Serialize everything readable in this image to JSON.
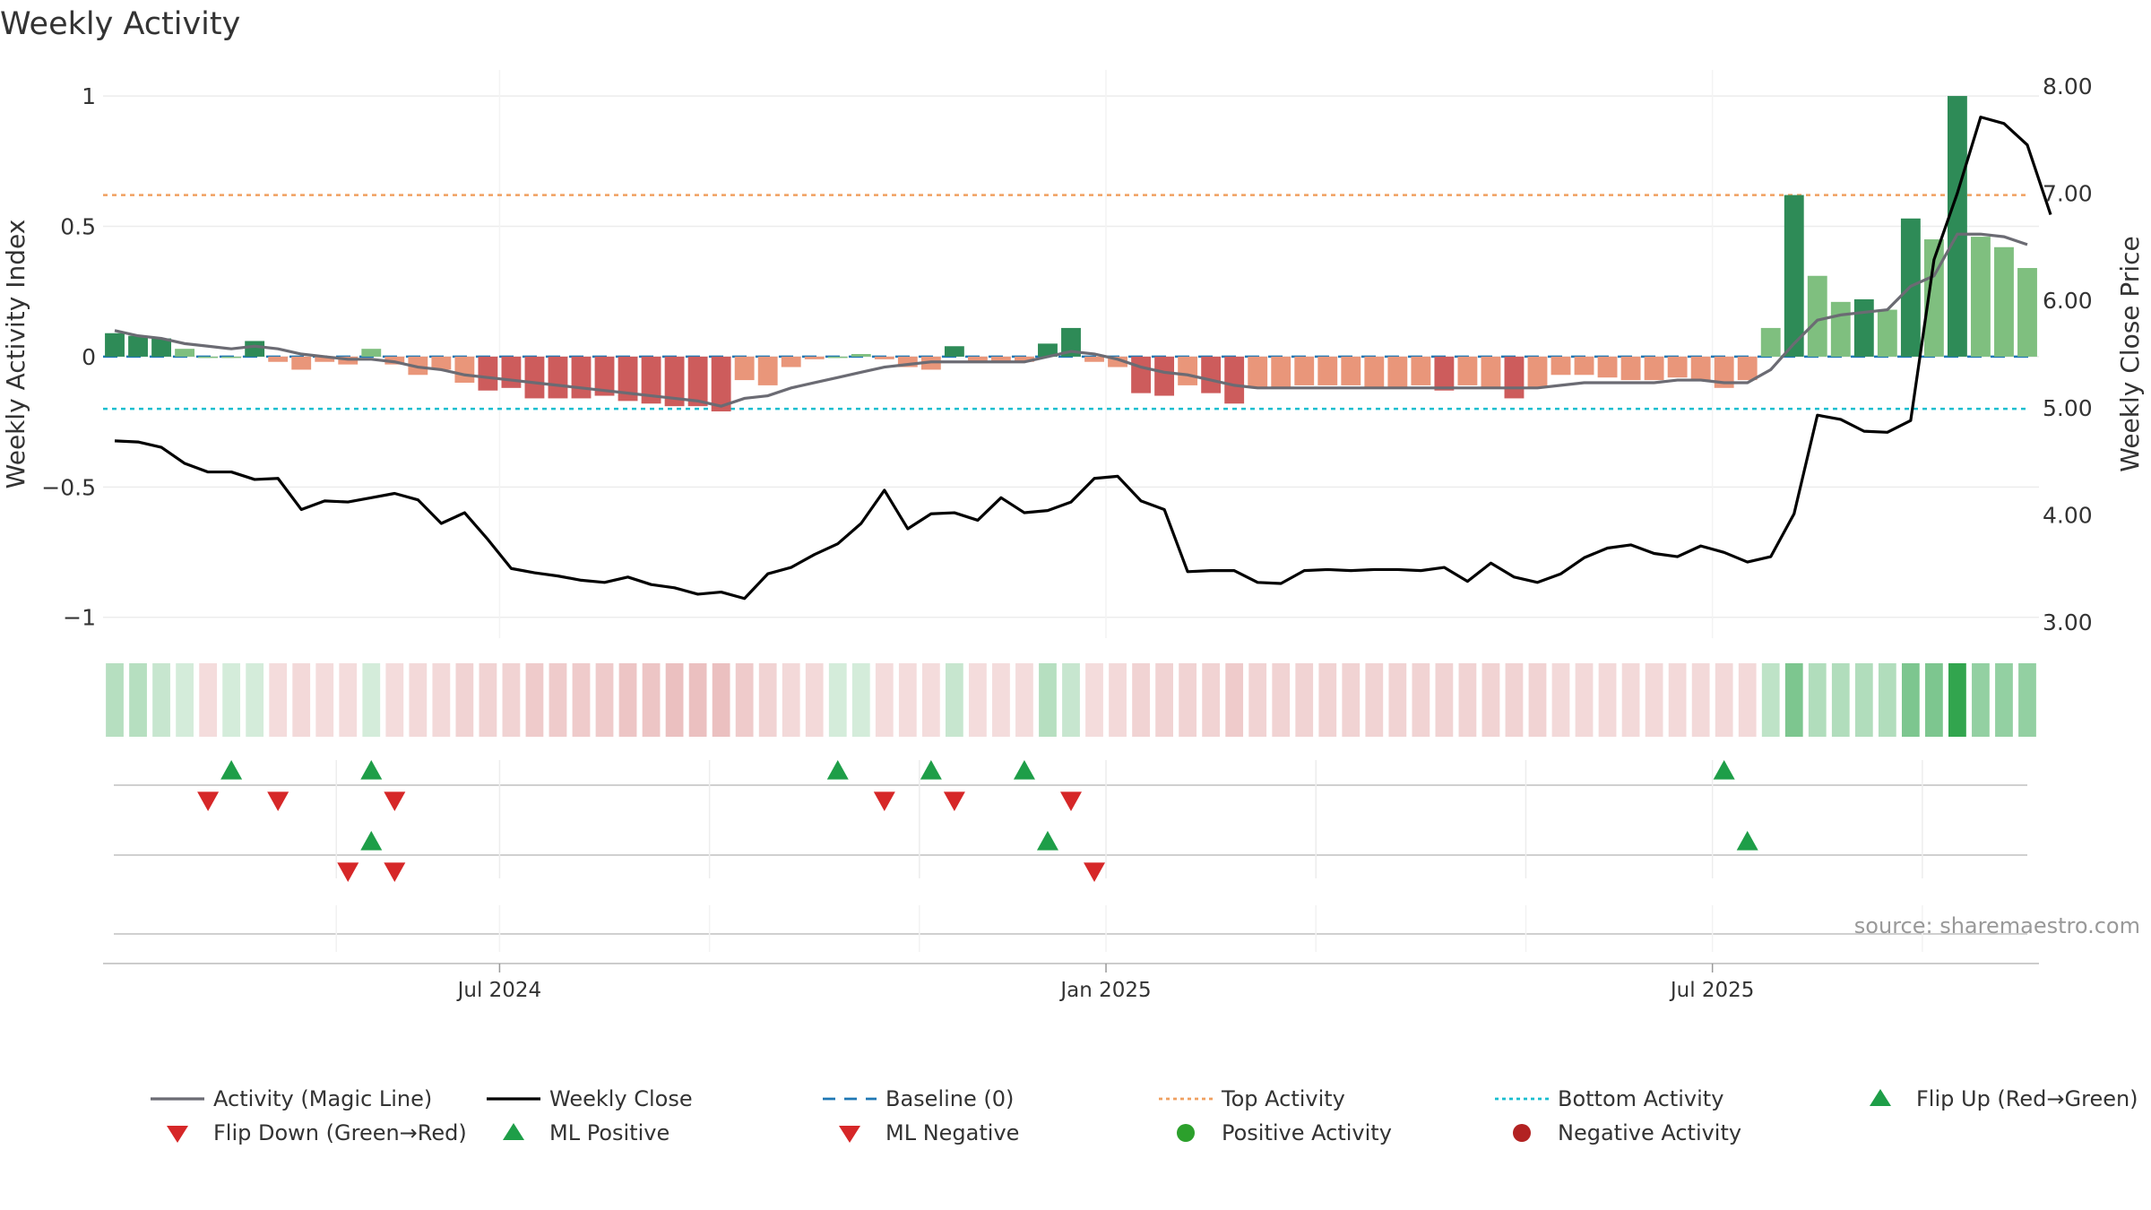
{
  "chart_data": {
    "type": "bar",
    "title": "Weekly Activity",
    "ylabel": "Weekly Activity Index",
    "y2label": "Weekly Close Price",
    "ylim": [
      -1.08,
      1.1
    ],
    "y2lim": [
      2.85,
      8.15
    ],
    "yticks": [
      {
        "v": 1,
        "label": "1"
      },
      {
        "v": 0.5,
        "label": "0.5"
      },
      {
        "v": 0,
        "label": "0"
      },
      {
        "v": -0.5,
        "label": "−0.5"
      },
      {
        "v": -1,
        "label": "−1"
      }
    ],
    "y2ticks": [
      {
        "v": 8,
        "label": "8.00"
      },
      {
        "v": 7,
        "label": "7.00"
      },
      {
        "v": 6,
        "label": "6.00"
      },
      {
        "v": 5,
        "label": "5.00"
      },
      {
        "v": 4,
        "label": "4.00"
      },
      {
        "v": 3,
        "label": "3.00"
      }
    ],
    "xticks": [
      {
        "week": 17,
        "label": "Jul 2024"
      },
      {
        "week": 43,
        "label": "Jan 2025"
      },
      {
        "week": 69,
        "label": "Jul 2025"
      }
    ],
    "top_activity": 0.62,
    "bottom_activity": -0.2,
    "activity": [
      0.09,
      0.08,
      0.07,
      0.03,
      0.0,
      0.0,
      0.06,
      -0.02,
      -0.05,
      -0.02,
      -0.03,
      0.03,
      -0.03,
      -0.07,
      -0.05,
      -0.1,
      -0.13,
      -0.12,
      -0.16,
      -0.16,
      -0.16,
      -0.15,
      -0.17,
      -0.18,
      -0.19,
      -0.19,
      -0.21,
      -0.09,
      -0.11,
      -0.04,
      -0.01,
      0.0,
      0.01,
      -0.01,
      -0.04,
      -0.05,
      0.04,
      -0.02,
      -0.02,
      -0.02,
      0.05,
      0.11,
      -0.02,
      -0.04,
      -0.14,
      -0.15,
      -0.11,
      -0.14,
      -0.18,
      -0.12,
      -0.12,
      -0.11,
      -0.11,
      -0.11,
      -0.12,
      -0.12,
      -0.11,
      -0.13,
      -0.11,
      -0.12,
      -0.16,
      -0.12,
      -0.07,
      -0.07,
      -0.08,
      -0.09,
      -0.09,
      -0.08,
      -0.09,
      -0.12,
      -0.09,
      0.11,
      0.62,
      0.31,
      0.21,
      0.22,
      0.18,
      0.53,
      0.45,
      1.0,
      0.46,
      0.42,
      0.34
    ],
    "magic_line": [
      0.1,
      0.08,
      0.07,
      0.05,
      0.04,
      0.03,
      0.04,
      0.03,
      0.01,
      0.0,
      -0.01,
      -0.01,
      -0.02,
      -0.04,
      -0.05,
      -0.07,
      -0.08,
      -0.09,
      -0.1,
      -0.11,
      -0.12,
      -0.13,
      -0.14,
      -0.15,
      -0.16,
      -0.17,
      -0.19,
      -0.16,
      -0.15,
      -0.12,
      -0.1,
      -0.08,
      -0.06,
      -0.04,
      -0.03,
      -0.02,
      -0.02,
      -0.02,
      -0.02,
      -0.02,
      0.0,
      0.02,
      0.01,
      -0.01,
      -0.04,
      -0.06,
      -0.07,
      -0.09,
      -0.11,
      -0.12,
      -0.12,
      -0.12,
      -0.12,
      -0.12,
      -0.12,
      -0.12,
      -0.12,
      -0.12,
      -0.12,
      -0.12,
      -0.12,
      -0.12,
      -0.11,
      -0.1,
      -0.1,
      -0.1,
      -0.1,
      -0.09,
      -0.09,
      -0.1,
      -0.1,
      -0.05,
      0.05,
      0.14,
      0.16,
      0.17,
      0.18,
      0.27,
      0.31,
      0.47,
      0.47,
      0.46,
      0.43
    ],
    "weekly_close": [
      4.69,
      4.68,
      4.63,
      4.48,
      4.4,
      4.4,
      4.33,
      4.34,
      4.05,
      4.13,
      4.12,
      4.16,
      4.2,
      4.14,
      3.92,
      4.02,
      3.77,
      3.5,
      3.46,
      3.43,
      3.39,
      3.37,
      3.42,
      3.35,
      3.32,
      3.26,
      3.28,
      3.22,
      3.45,
      3.51,
      3.63,
      3.73,
      3.92,
      4.23,
      3.87,
      4.01,
      4.02,
      3.95,
      4.16,
      4.02,
      4.04,
      4.12,
      4.34,
      4.36,
      4.13,
      4.05,
      3.47,
      3.48,
      3.48,
      3.37,
      3.36,
      3.48,
      3.49,
      3.48,
      3.49,
      3.49,
      3.48,
      3.51,
      3.38,
      3.55,
      3.42,
      3.37,
      3.45,
      3.6,
      3.69,
      3.72,
      3.64,
      3.61,
      3.71,
      3.65,
      3.56,
      3.61,
      4.01,
      4.93,
      4.89,
      4.78,
      4.77,
      4.88,
      6.38,
      7.0,
      7.71,
      7.65,
      7.45,
      6.8
    ],
    "strip_levels": [
      0.34,
      0.34,
      0.26,
      0.2,
      -0.2,
      0.2,
      0.2,
      -0.2,
      -0.22,
      -0.2,
      -0.2,
      0.2,
      -0.2,
      -0.22,
      -0.22,
      -0.25,
      -0.25,
      -0.25,
      -0.3,
      -0.3,
      -0.3,
      -0.3,
      -0.33,
      -0.33,
      -0.36,
      -0.36,
      -0.36,
      -0.3,
      -0.25,
      -0.22,
      -0.22,
      0.2,
      0.2,
      -0.2,
      -0.2,
      -0.2,
      0.26,
      -0.2,
      -0.2,
      -0.2,
      0.34,
      0.26,
      -0.2,
      -0.22,
      -0.25,
      -0.25,
      -0.25,
      -0.25,
      -0.3,
      -0.25,
      -0.25,
      -0.25,
      -0.25,
      -0.25,
      -0.25,
      -0.25,
      -0.25,
      -0.25,
      -0.25,
      -0.25,
      -0.25,
      -0.25,
      -0.22,
      -0.22,
      -0.22,
      -0.22,
      -0.22,
      -0.22,
      -0.22,
      -0.22,
      -0.22,
      0.3,
      0.6,
      0.36,
      0.36,
      0.36,
      0.36,
      0.6,
      0.6,
      0.95,
      0.5,
      0.5,
      0.5
    ],
    "flip_up": [
      5,
      11,
      31,
      35,
      39,
      69
    ],
    "flip_down": [
      4,
      7,
      12,
      33,
      36,
      41
    ],
    "ml_positive": [
      11,
      40,
      70
    ],
    "ml_negative": [
      10,
      12,
      42
    ],
    "legend_position": "bottom",
    "legend": [
      {
        "label": "Activity (Magic Line)",
        "type": "line",
        "color": "#6b6b73"
      },
      {
        "label": "Weekly Close",
        "type": "line",
        "color": "#000000"
      },
      {
        "label": "Baseline (0)",
        "type": "dashed",
        "color": "#1f77b4"
      },
      {
        "label": "Top Activity",
        "type": "dotted",
        "color": "#f0a060"
      },
      {
        "label": "Bottom Activity",
        "type": "dotted",
        "color": "#17becf"
      },
      {
        "label": "Flip Up (Red→Green)",
        "type": "tri-up",
        "color": "#1e9e48"
      },
      {
        "label": "Flip Down (Green→Red)",
        "type": "tri-down",
        "color": "#d62728"
      },
      {
        "label": "ML Positive",
        "type": "tri-up",
        "color": "#1e9e48"
      },
      {
        "label": "ML Negative",
        "type": "tri-down",
        "color": "#d62728"
      },
      {
        "label": "Positive Activity",
        "type": "circle",
        "color": "#2ca02c"
      },
      {
        "label": "Negative Activity",
        "type": "circle",
        "color": "#b22222"
      }
    ],
    "source": "source: sharemaestro.com",
    "colors": {
      "pos_strong": "#2e8b57",
      "pos_weak": "#7fbf7f",
      "neg_strong": "#cd5c5c",
      "neg_weak": "#e9967a",
      "strip_green": "#27a045",
      "strip_red": "#c85050",
      "tri_up": "#1e9e48",
      "tri_down": "#d62728"
    }
  }
}
